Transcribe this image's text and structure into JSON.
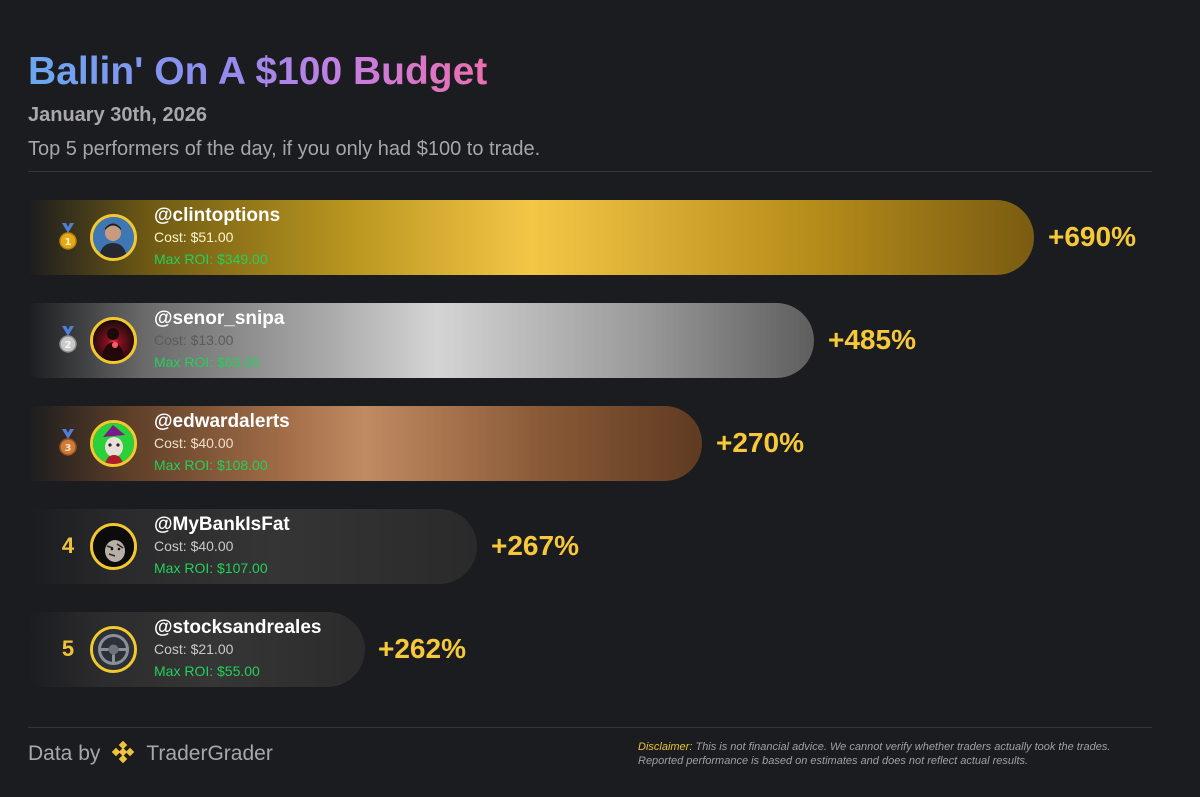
{
  "header": {
    "title": "Ballin' On A $100 Budget",
    "date": "January 30th, 2026",
    "subtitle": "Top 5 performers of the day, if you only had $100 to trade."
  },
  "colors": {
    "accent_gold": "#f6c83a",
    "roi_green": "#22d05a",
    "background": "#1b1c1f"
  },
  "chart_data": {
    "type": "bar",
    "orientation": "horizontal",
    "title": "Ballin' On A $100 Budget",
    "categories": [
      "@clintoptions",
      "@senor_snipa",
      "@edwardalerts",
      "@MyBankIsFat",
      "@stocksandreales"
    ],
    "values": [
      690,
      485,
      270,
      267,
      262
    ],
    "unit": "%",
    "rows": [
      {
        "rank": "1",
        "medal": "gold-medal-icon",
        "handle": "@clintoptions",
        "cost": "Cost: $51.00",
        "max_roi": "Max ROI: $349.00",
        "pct_label": "+690%",
        "pct": 690
      },
      {
        "rank": "2",
        "medal": "silver-medal-icon",
        "handle": "@senor_snipa",
        "cost": "Cost: $13.00",
        "max_roi": "Max ROI: $63.00",
        "pct_label": "+485%",
        "pct": 485
      },
      {
        "rank": "3",
        "medal": "bronze-medal-icon",
        "handle": "@edwardalerts",
        "cost": "Cost: $40.00",
        "max_roi": "Max ROI: $108.00",
        "pct_label": "+270%",
        "pct": 270
      },
      {
        "rank": "4",
        "handle": "@MyBankIsFat",
        "cost": "Cost: $40.00",
        "max_roi": "Max ROI: $107.00",
        "pct_label": "+267%",
        "pct": 267
      },
      {
        "rank": "5",
        "handle": "@stocksandreales",
        "cost": "Cost: $21.00",
        "max_roi": "Max ROI: $55.00",
        "pct_label": "+262%",
        "pct": 262
      }
    ]
  },
  "footer": {
    "data_by": "Data by",
    "brand": "TraderGrader",
    "disclaimer_label": "Disclaimer:",
    "disclaimer_text": "This is not financial advice. We cannot verify whether traders actually took the trades. Reported performance is based on estimates and does not reflect actual results."
  }
}
